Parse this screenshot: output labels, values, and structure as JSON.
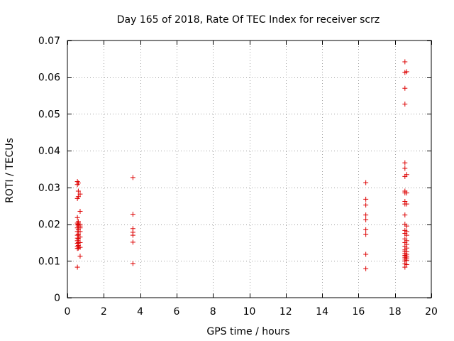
{
  "chart_data": {
    "type": "scatter",
    "title": "Day 165 of 2018, Rate Of TEC Index for receiver scrz",
    "xlabel": "GPS time / hours",
    "ylabel": "ROTI / TECUs",
    "xlim": [
      0,
      20
    ],
    "ylim": [
      0,
      0.07
    ],
    "x_ticks": [
      0,
      2,
      4,
      6,
      8,
      10,
      12,
      14,
      16,
      18,
      20
    ],
    "y_ticks": [
      0,
      0.01,
      0.02,
      0.03,
      0.04,
      0.05,
      0.06,
      0.07
    ],
    "x_tick_labels": [
      "0",
      "2",
      "4",
      "6",
      "8",
      "10",
      "12",
      "14",
      "16",
      "18",
      "20"
    ],
    "y_tick_labels": [
      "0",
      "0.01",
      "0.02",
      "0.03",
      "0.04",
      "0.05",
      "0.06",
      "0.07"
    ],
    "grid": true,
    "marker": "+",
    "colors": {
      "marker": "#dd0000",
      "grid": "#a0a0a0",
      "axes": "#000000"
    },
    "series": [
      {
        "name": "ROTI",
        "points": [
          [
            0.55,
            0.0083
          ],
          [
            0.55,
            0.0134
          ],
          [
            0.55,
            0.014
          ],
          [
            0.55,
            0.0148
          ],
          [
            0.55,
            0.0155
          ],
          [
            0.55,
            0.0162
          ],
          [
            0.55,
            0.017
          ],
          [
            0.55,
            0.018
          ],
          [
            0.55,
            0.019
          ],
          [
            0.55,
            0.0198
          ],
          [
            0.55,
            0.0203
          ],
          [
            0.55,
            0.0218
          ],
          [
            0.55,
            0.027
          ],
          [
            0.55,
            0.0308
          ],
          [
            0.55,
            0.0316
          ],
          [
            0.6,
            0.0135
          ],
          [
            0.6,
            0.0142
          ],
          [
            0.6,
            0.015
          ],
          [
            0.6,
            0.016
          ],
          [
            0.6,
            0.0172
          ],
          [
            0.6,
            0.0185
          ],
          [
            0.6,
            0.0195
          ],
          [
            0.6,
            0.02
          ],
          [
            0.6,
            0.0207
          ],
          [
            0.6,
            0.0275
          ],
          [
            0.6,
            0.029
          ],
          [
            0.6,
            0.0312
          ],
          [
            0.7,
            0.0113
          ],
          [
            0.7,
            0.0137
          ],
          [
            0.7,
            0.015
          ],
          [
            0.7,
            0.0165
          ],
          [
            0.7,
            0.018
          ],
          [
            0.7,
            0.019
          ],
          [
            0.7,
            0.0195
          ],
          [
            0.7,
            0.02
          ],
          [
            0.7,
            0.0235
          ],
          [
            0.7,
            0.0282
          ],
          [
            3.6,
            0.0093
          ],
          [
            3.6,
            0.0151
          ],
          [
            3.6,
            0.017
          ],
          [
            3.6,
            0.0178
          ],
          [
            3.6,
            0.0188
          ],
          [
            3.6,
            0.0227
          ],
          [
            3.6,
            0.0327
          ],
          [
            16.4,
            0.0079
          ],
          [
            16.4,
            0.0118
          ],
          [
            16.4,
            0.0172
          ],
          [
            16.4,
            0.0185
          ],
          [
            16.4,
            0.0212
          ],
          [
            16.4,
            0.0225
          ],
          [
            16.4,
            0.0252
          ],
          [
            16.4,
            0.0268
          ],
          [
            16.4,
            0.0313
          ],
          [
            18.55,
            0.0083
          ],
          [
            18.55,
            0.0092
          ],
          [
            18.55,
            0.01
          ],
          [
            18.55,
            0.0105
          ],
          [
            18.55,
            0.011
          ],
          [
            18.55,
            0.0115
          ],
          [
            18.55,
            0.012
          ],
          [
            18.55,
            0.0125
          ],
          [
            18.55,
            0.013
          ],
          [
            18.55,
            0.014
          ],
          [
            18.55,
            0.015
          ],
          [
            18.55,
            0.016
          ],
          [
            18.55,
            0.0175
          ],
          [
            18.55,
            0.0183
          ],
          [
            18.55,
            0.02
          ],
          [
            18.55,
            0.0225
          ],
          [
            18.55,
            0.0255
          ],
          [
            18.55,
            0.0262
          ],
          [
            18.55,
            0.0285
          ],
          [
            18.55,
            0.029
          ],
          [
            18.55,
            0.033
          ],
          [
            18.55,
            0.0352
          ],
          [
            18.55,
            0.0367
          ],
          [
            18.55,
            0.0527
          ],
          [
            18.55,
            0.057
          ],
          [
            18.55,
            0.0613
          ],
          [
            18.55,
            0.0642
          ],
          [
            18.65,
            0.009
          ],
          [
            18.65,
            0.0102
          ],
          [
            18.65,
            0.0108
          ],
          [
            18.65,
            0.0113
          ],
          [
            18.65,
            0.0118
          ],
          [
            18.65,
            0.0125
          ],
          [
            18.65,
            0.0135
          ],
          [
            18.65,
            0.0145
          ],
          [
            18.65,
            0.0155
          ],
          [
            18.65,
            0.017
          ],
          [
            18.65,
            0.018
          ],
          [
            18.65,
            0.0195
          ],
          [
            18.65,
            0.0255
          ],
          [
            18.65,
            0.0285
          ],
          [
            18.65,
            0.0335
          ],
          [
            18.65,
            0.0615
          ]
        ]
      }
    ]
  }
}
